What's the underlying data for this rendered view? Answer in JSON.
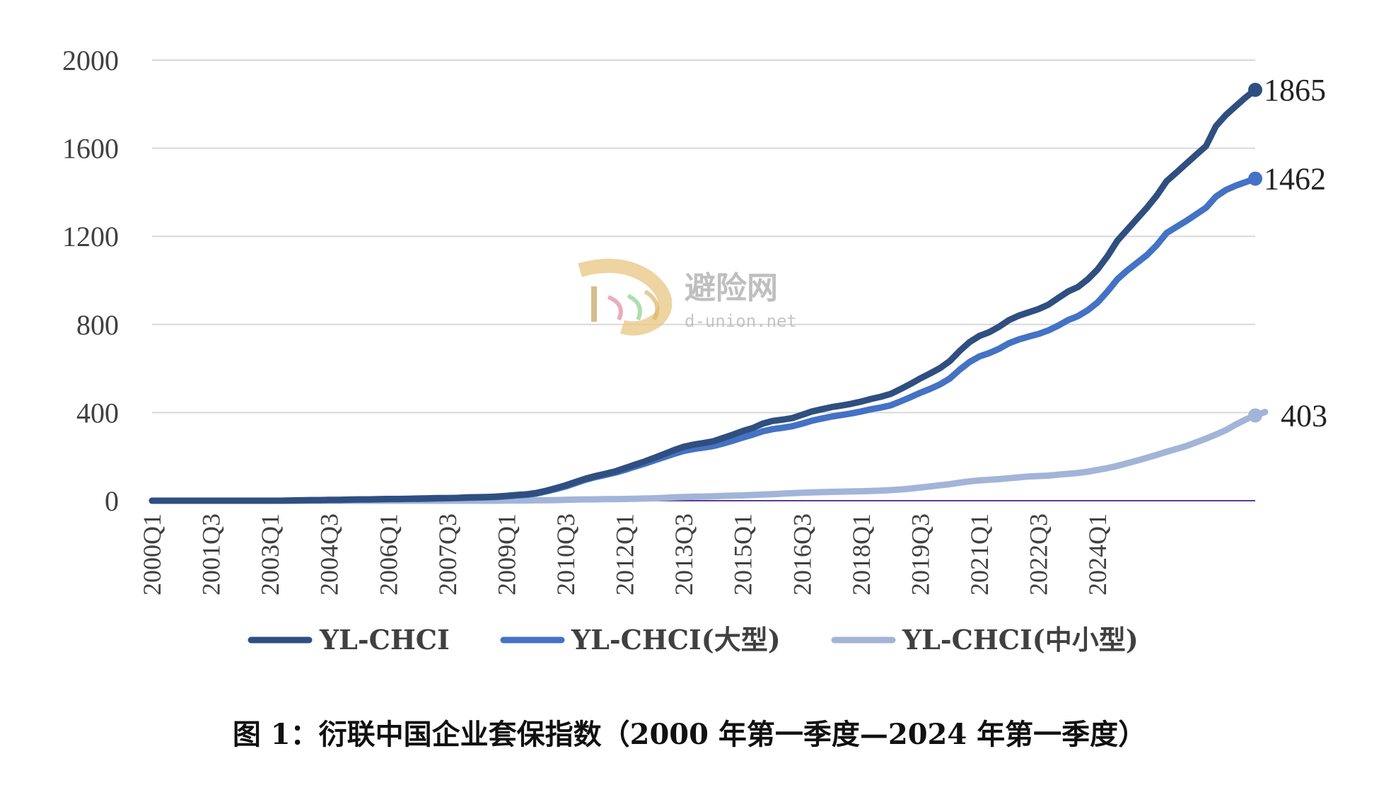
{
  "chart_data": {
    "type": "line",
    "ylim": [
      0,
      2000
    ],
    "yticks": [
      "0",
      "400",
      "800",
      "1200",
      "1600",
      "2000"
    ],
    "xtick_labels": [
      "2000Q1",
      "2001Q3",
      "2003Q1",
      "2004Q3",
      "2006Q1",
      "2007Q3",
      "2009Q1",
      "2010Q3",
      "2012Q1",
      "2013Q3",
      "2015Q1",
      "2016Q3",
      "2018Q1",
      "2019Q3",
      "2021Q1",
      "2022Q3",
      "2024Q1"
    ],
    "grid": true,
    "legend": "bottom",
    "colors": {
      "total": "#2f4f80",
      "large": "#4472c4",
      "small": "#a2b4d8",
      "baseline": "#5b3a9a"
    },
    "series": [
      {
        "name": "YL-CHCI",
        "end_label": "1865",
        "values": [
          0,
          0,
          0,
          0,
          0,
          0,
          0,
          0,
          0,
          0,
          0,
          0,
          0,
          0,
          1,
          2,
          3,
          3,
          4,
          4,
          5,
          6,
          6,
          7,
          8,
          8,
          9,
          10,
          11,
          12,
          12,
          13,
          15,
          16,
          17,
          19,
          22,
          26,
          29,
          35,
          45,
          57,
          70,
          85,
          100,
          112,
          122,
          133,
          148,
          163,
          178,
          195,
          212,
          230,
          245,
          255,
          262,
          270,
          285,
          300,
          317,
          330,
          350,
          362,
          368,
          375,
          390,
          405,
          415,
          425,
          432,
          440,
          450,
          462,
          472,
          485,
          507,
          530,
          555,
          578,
          602,
          634,
          680,
          720,
          748,
          765,
          790,
          820,
          840,
          855,
          870,
          890,
          920,
          950,
          970,
          1005,
          1050,
          1110,
          1180,
          1230,
          1280,
          1330,
          1385,
          1450,
          1490,
          1530,
          1570,
          1610,
          1700,
          1750,
          1790,
          1830,
          1865
        ]
      },
      {
        "name": "YL-CHCI(大型)",
        "end_label": "1462",
        "values": [
          0,
          0,
          0,
          0,
          0,
          0,
          0,
          0,
          0,
          0,
          0,
          0,
          0,
          0,
          1,
          1,
          2,
          2,
          3,
          3,
          4,
          5,
          5,
          6,
          7,
          7,
          8,
          8,
          9,
          10,
          11,
          12,
          13,
          14,
          15,
          17,
          20,
          24,
          27,
          32,
          42,
          53,
          65,
          80,
          95,
          107,
          117,
          127,
          140,
          154,
          168,
          183,
          198,
          213,
          226,
          235,
          241,
          248,
          260,
          273,
          287,
          300,
          315,
          325,
          331,
          338,
          350,
          363,
          373,
          382,
          389,
          396,
          405,
          415,
          423,
          433,
          451,
          470,
          490,
          508,
          528,
          555,
          595,
          630,
          655,
          670,
          690,
          715,
          732,
          745,
          757,
          773,
          795,
          820,
          838,
          865,
          900,
          950,
          1005,
          1045,
          1080,
          1115,
          1160,
          1215,
          1243,
          1270,
          1300,
          1330,
          1380,
          1410,
          1430,
          1446,
          1462
        ]
      },
      {
        "name": "YL-CHCI(中小型)",
        "end_label": "403",
        "values": [
          0,
          0,
          0,
          0,
          0,
          0,
          0,
          0,
          0,
          0,
          0,
          0,
          0,
          0,
          0,
          0,
          0,
          0,
          0,
          0,
          0,
          0,
          0,
          0,
          0,
          0,
          0,
          0,
          0,
          0,
          0,
          0,
          0,
          0,
          0,
          0,
          1,
          1,
          1,
          2,
          2,
          3,
          4,
          5,
          6,
          6,
          7,
          7,
          8,
          9,
          10,
          11,
          13,
          15,
          17,
          18,
          19,
          20,
          22,
          23,
          24,
          26,
          28,
          30,
          32,
          34,
          36,
          38,
          39,
          40,
          41,
          42,
          43,
          44,
          46,
          48,
          51,
          55,
          60,
          65,
          70,
          75,
          82,
          88,
          92,
          95,
          98,
          102,
          106,
          110,
          112,
          114,
          118,
          122,
          126,
          132,
          140,
          148,
          158,
          170,
          182,
          195,
          208,
          222,
          235,
          248,
          265,
          282,
          300,
          320,
          345,
          368,
          387,
          403
        ]
      }
    ]
  },
  "caption": "图 1：衍联中国企业套保指数（2000 年第一季度—2024 年第一季度）",
  "watermark": {
    "name": "避险网",
    "url": "d-union.net"
  }
}
